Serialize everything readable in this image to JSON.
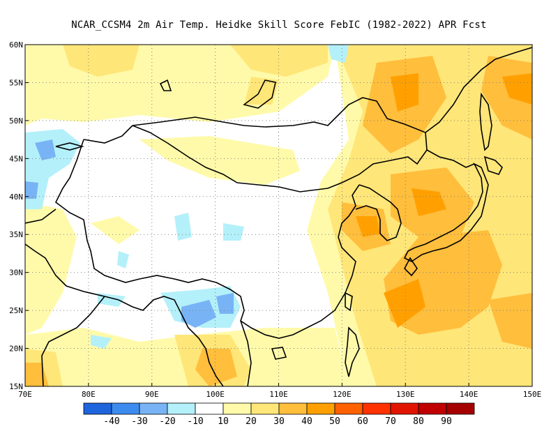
{
  "title": "NCAR_CCSM4  2m Air Temp. Heidke Skill Score FebIC (1982-2022) APR Fcst",
  "map": {
    "lon_range": [
      70,
      150
    ],
    "lat_range": [
      15,
      60
    ],
    "x_ticks": [
      {
        "value": 70,
        "label": "70E"
      },
      {
        "value": 80,
        "label": "80E"
      },
      {
        "value": 90,
        "label": "90E"
      },
      {
        "value": 100,
        "label": "100E"
      },
      {
        "value": 110,
        "label": "110E"
      },
      {
        "value": 120,
        "label": "120E"
      },
      {
        "value": 130,
        "label": "130E"
      },
      {
        "value": 140,
        "label": "140E"
      },
      {
        "value": 150,
        "label": "150E"
      }
    ],
    "y_ticks": [
      {
        "value": 15,
        "label": "15N"
      },
      {
        "value": 20,
        "label": "20N"
      },
      {
        "value": 25,
        "label": "25N"
      },
      {
        "value": 30,
        "label": "30N"
      },
      {
        "value": 35,
        "label": "35N"
      },
      {
        "value": 40,
        "label": "40N"
      },
      {
        "value": 45,
        "label": "45N"
      },
      {
        "value": 50,
        "label": "50N"
      },
      {
        "value": 55,
        "label": "55N"
      },
      {
        "value": 60,
        "label": "60N"
      }
    ],
    "grid": "dotted"
  },
  "colorbar": {
    "colors": [
      "#1e64dc",
      "#3c8cf0",
      "#78b4f5",
      "#b4f0fa",
      "#ffffff",
      "#fffaaa",
      "#ffe678",
      "#ffbe3c",
      "#ffa000",
      "#ff6000",
      "#ff3200",
      "#e11400",
      "#c00000",
      "#a50000"
    ],
    "labels": [
      "-40",
      "-30",
      "-20",
      "-10",
      "10",
      "20",
      "30",
      "40",
      "50",
      "60",
      "70",
      "80",
      "90"
    ]
  },
  "regions": {
    "light_yellow": "#fffaaa",
    "yellow": "#ffe678",
    "orange": "#ffbe3c",
    "dark_orange": "#ffa000",
    "light_blue": "#b4f0fa",
    "blue": "#78b4f5",
    "mid_blue": "#3c8cf0"
  }
}
